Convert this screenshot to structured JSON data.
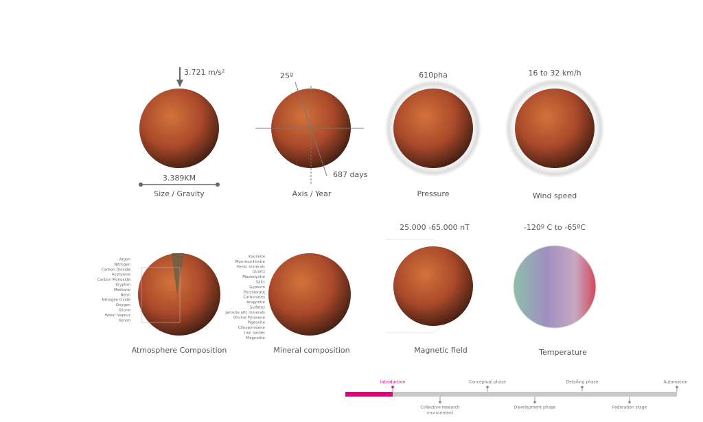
{
  "panels": [
    {
      "values": [
        "3.721 m/s²",
        "3.389KM"
      ],
      "label": "Size / Gravity"
    },
    {
      "values": [
        "25º",
        "687 days"
      ],
      "label": "Axis / Year"
    },
    {
      "values": [
        "610pha"
      ],
      "label": "Pressure"
    },
    {
      "values": [
        "16 to 32 km/h"
      ],
      "label": "Wind speed"
    },
    {
      "items": [
        "Argon",
        "Nitrogen",
        "Carbon Dioxide",
        "Acetylene",
        "Carbon Monoxide",
        "Krypton",
        "Methane",
        "Neon",
        "Nitrogen Oxide",
        "Oxygen",
        "Ozone",
        "Water Vapour",
        "Xenon"
      ],
      "label": "Atmosphere Composition"
    },
    {
      "items": [
        "Kaolinite",
        "Montmorillonite",
        "Felsic minerals",
        "Quartz",
        "Maskelynite",
        "Salts",
        "Gypsum",
        "Perchlorate",
        "Carbonates",
        "Aragonite",
        "Sulfates",
        "Jarosite afic minerals",
        "Olivine Pyroxene",
        "Pigeonite",
        "Clinopyroxene",
        "Iron oxides",
        "Magnetite"
      ],
      "label": "Mineral composition"
    },
    {
      "values": [
        "25.000 -65.000 nT"
      ],
      "label": "Magnetic field"
    },
    {
      "values": [
        "-120º C to -65ºC"
      ],
      "label": "Temperature"
    }
  ],
  "timeline": {
    "top": [
      "Introduction",
      "Conceptual phase",
      "Detailing phase",
      "Automation"
    ],
    "bottom": [
      [
        "Collective research",
        "environment"
      ],
      [
        "Development phase"
      ],
      [
        "Federation stage"
      ]
    ]
  }
}
